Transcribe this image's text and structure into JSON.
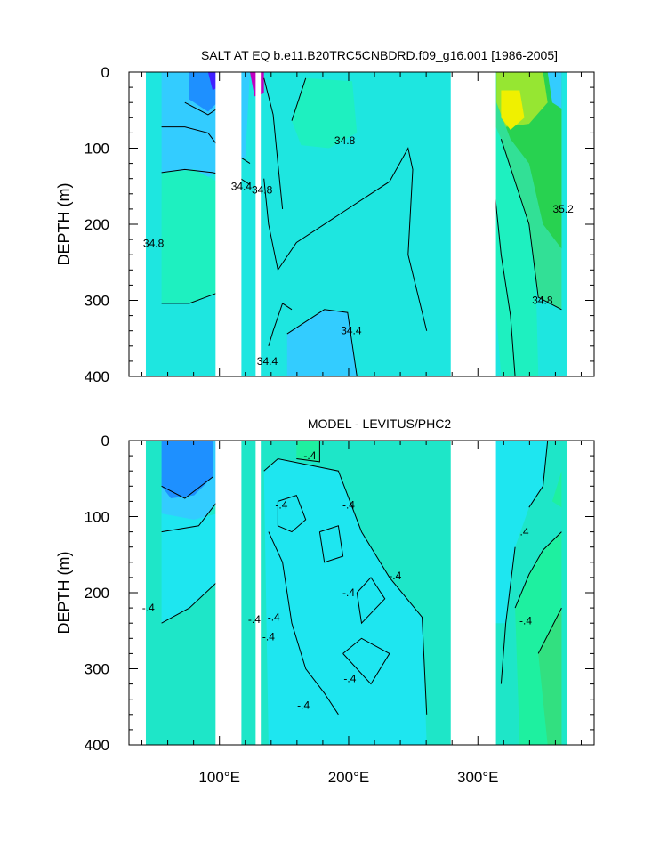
{
  "chart_data": [
    {
      "type": "contour",
      "title": "SALT AT EQ b.e11.B20TRC5CNBDRD.f09_g16.001 [1986-2005]",
      "ylabel": "DEPTH (m)",
      "xlim": [
        30,
        390
      ],
      "ylim": [
        0,
        400
      ],
      "y_ticks": [
        0,
        100,
        200,
        300,
        400
      ],
      "y_tick_labels": [
        "0",
        "100",
        "200",
        "300",
        "400"
      ],
      "x_ticks": [
        100,
        200,
        300
      ],
      "x_tick_labels": [],
      "land_gaps": [
        [
          97,
          117
        ],
        [
          128,
          132
        ],
        [
          279,
          314
        ],
        [
          370,
          390
        ]
      ],
      "colors": {
        "base": "#1ee6e0",
        "low": "#33ccff",
        "lower": "#1e90ff",
        "min": "#4020ff",
        "extreme": "#c000c0",
        "mid": "#1ef0c0",
        "high1": "#32e096",
        "high2": "#28d250",
        "high3": "#96e632",
        "high4": "#f0f000"
      },
      "contour_labels": [
        {
          "x": 197,
          "y": 90,
          "text": "34.8"
        },
        {
          "x": 117,
          "y": 150,
          "text": "34.4"
        },
        {
          "x": 133,
          "y": 155,
          "text": "34.8"
        },
        {
          "x": 49,
          "y": 225,
          "text": "34.8"
        },
        {
          "x": 202,
          "y": 340,
          "text": "34.4"
        },
        {
          "x": 137,
          "y": 380,
          "text": "34.4"
        },
        {
          "x": 366,
          "y": 180,
          "text": "35.2"
        },
        {
          "x": 350,
          "y": 300,
          "text": "34.8"
        }
      ]
    },
    {
      "type": "contour",
      "title": "MODEL - LEVITUS/PHC2",
      "ylabel": "DEPTH (m)",
      "xlim": [
        30,
        390
      ],
      "ylim": [
        0,
        400
      ],
      "y_ticks": [
        0,
        100,
        200,
        300,
        400
      ],
      "y_tick_labels": [
        "0",
        "100",
        "200",
        "300",
        "400"
      ],
      "x_ticks": [
        100,
        200,
        300
      ],
      "x_tick_labels": [
        "100°E",
        "200°E",
        "300°E"
      ],
      "land_gaps": [
        [
          97,
          117
        ],
        [
          128,
          132
        ],
        [
          279,
          314
        ],
        [
          370,
          390
        ]
      ],
      "colors": {
        "base": "#1ee6c8",
        "neg1": "#1ee6f0",
        "neg2": "#33ccff",
        "neg3": "#1e90ff",
        "pos1": "#1ef0a0",
        "pos2": "#32e080"
      },
      "contour_labels": [
        {
          "x": 170,
          "y": 20,
          "text": "-.4"
        },
        {
          "x": 148,
          "y": 85,
          "text": "-.4"
        },
        {
          "x": 200,
          "y": 85,
          "text": "-.4"
        },
        {
          "x": 45,
          "y": 220,
          "text": "-.4"
        },
        {
          "x": 200,
          "y": 200,
          "text": "-.4"
        },
        {
          "x": 236,
          "y": 178,
          "text": "-.4"
        },
        {
          "x": 127,
          "y": 235,
          "text": "-.4"
        },
        {
          "x": 142,
          "y": 232,
          "text": "-.4"
        },
        {
          "x": 138,
          "y": 258,
          "text": "-.4"
        },
        {
          "x": 201,
          "y": 313,
          "text": "-.4"
        },
        {
          "x": 165,
          "y": 348,
          "text": "-.4"
        },
        {
          "x": 336,
          "y": 120,
          "text": ".4"
        },
        {
          "x": 337,
          "y": 237,
          "text": "-.4"
        }
      ]
    }
  ]
}
